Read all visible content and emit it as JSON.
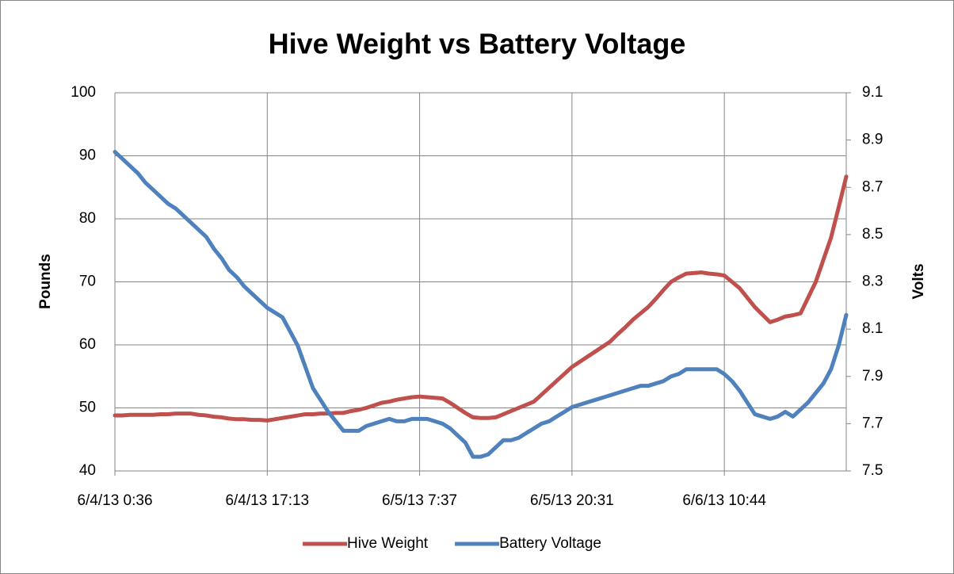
{
  "chart_data": {
    "type": "line",
    "title": "Hive Weight vs Battery Voltage",
    "y_label": "Pounds",
    "y2_label": "Volts",
    "categories": [
      "6/4/13 0:36",
      null,
      null,
      null,
      null,
      null,
      null,
      null,
      null,
      null,
      null,
      null,
      null,
      null,
      null,
      null,
      null,
      null,
      null,
      null,
      "6/4/13 17:13",
      null,
      null,
      null,
      null,
      null,
      null,
      null,
      null,
      null,
      null,
      null,
      null,
      null,
      null,
      null,
      null,
      null,
      null,
      null,
      "6/5/13 7:37",
      null,
      null,
      null,
      null,
      null,
      null,
      null,
      null,
      null,
      null,
      null,
      null,
      null,
      null,
      null,
      null,
      null,
      null,
      null,
      "6/5/13 20:31",
      null,
      null,
      null,
      null,
      null,
      null,
      null,
      null,
      null,
      null,
      null,
      null,
      null,
      null,
      null,
      null,
      null,
      null,
      null,
      "6/6/13 10:44",
      null,
      null,
      null,
      null,
      null,
      null,
      null,
      null,
      null,
      null,
      null,
      null,
      null,
      null,
      null,
      null
    ],
    "series": [
      {
        "name": "Hive Weight",
        "color": "#c0504d",
        "axis": "y",
        "values": [
          48.8,
          48.8,
          48.9,
          48.9,
          48.9,
          48.9,
          49.0,
          49.0,
          49.1,
          49.1,
          49.1,
          48.9,
          48.8,
          48.6,
          48.5,
          48.3,
          48.2,
          48.2,
          48.1,
          48.1,
          48.0,
          48.2,
          48.4,
          48.6,
          48.8,
          49.0,
          49.0,
          49.1,
          49.1,
          49.2,
          49.2,
          49.5,
          49.7,
          50.0,
          50.4,
          50.8,
          51.0,
          51.3,
          51.5,
          51.7,
          51.8,
          51.7,
          51.6,
          51.5,
          50.8,
          50.0,
          49.2,
          48.5,
          48.4,
          48.4,
          48.5,
          49.0,
          49.5,
          50.0,
          50.5,
          51.0,
          52.1,
          53.2,
          54.3,
          55.4,
          56.5,
          57.3,
          58.1,
          58.9,
          59.7,
          60.5,
          61.7,
          62.8,
          64.0,
          65.0,
          66.0,
          67.3,
          68.7,
          70.0,
          70.7,
          71.3,
          71.4,
          71.5,
          71.3,
          71.2,
          71.0,
          70.0,
          69.0,
          67.5,
          66.0,
          64.8,
          63.6,
          64.0,
          64.5,
          64.7,
          65.0,
          67.5,
          70.0,
          73.5,
          77.0,
          81.8,
          86.7
        ]
      },
      {
        "name": "Battery Voltage",
        "color": "#4f81bd",
        "axis": "y2",
        "values": [
          8.85,
          8.82,
          8.79,
          8.76,
          8.72,
          8.69,
          8.66,
          8.63,
          8.61,
          8.58,
          8.55,
          8.52,
          8.49,
          8.44,
          8.4,
          8.35,
          8.32,
          8.28,
          8.25,
          8.22,
          8.19,
          8.17,
          8.15,
          8.09,
          8.03,
          7.94,
          7.85,
          7.8,
          7.75,
          7.71,
          7.67,
          7.67,
          7.67,
          7.69,
          7.7,
          7.71,
          7.72,
          7.71,
          7.71,
          7.72,
          7.72,
          7.72,
          7.71,
          7.7,
          7.68,
          7.65,
          7.62,
          7.56,
          7.56,
          7.57,
          7.6,
          7.63,
          7.63,
          7.64,
          7.66,
          7.68,
          7.7,
          7.71,
          7.73,
          7.75,
          7.77,
          7.78,
          7.79,
          7.8,
          7.81,
          7.82,
          7.83,
          7.84,
          7.85,
          7.86,
          7.86,
          7.87,
          7.88,
          7.9,
          7.91,
          7.93,
          7.93,
          7.93,
          7.93,
          7.93,
          7.91,
          7.88,
          7.84,
          7.79,
          7.74,
          7.73,
          7.72,
          7.73,
          7.75,
          7.73,
          7.76,
          7.79,
          7.83,
          7.87,
          7.93,
          8.03,
          8.16
        ]
      }
    ],
    "ylim": [
      40,
      100
    ],
    "yticks": [
      40,
      50,
      60,
      70,
      80,
      90,
      100
    ],
    "y2lim": [
      7.5,
      9.1
    ],
    "y2ticks": [
      7.5,
      7.7,
      7.9,
      8.1,
      8.3,
      8.5,
      8.7,
      8.9,
      9.1
    ],
    "grid": true,
    "legend": "bottom"
  }
}
